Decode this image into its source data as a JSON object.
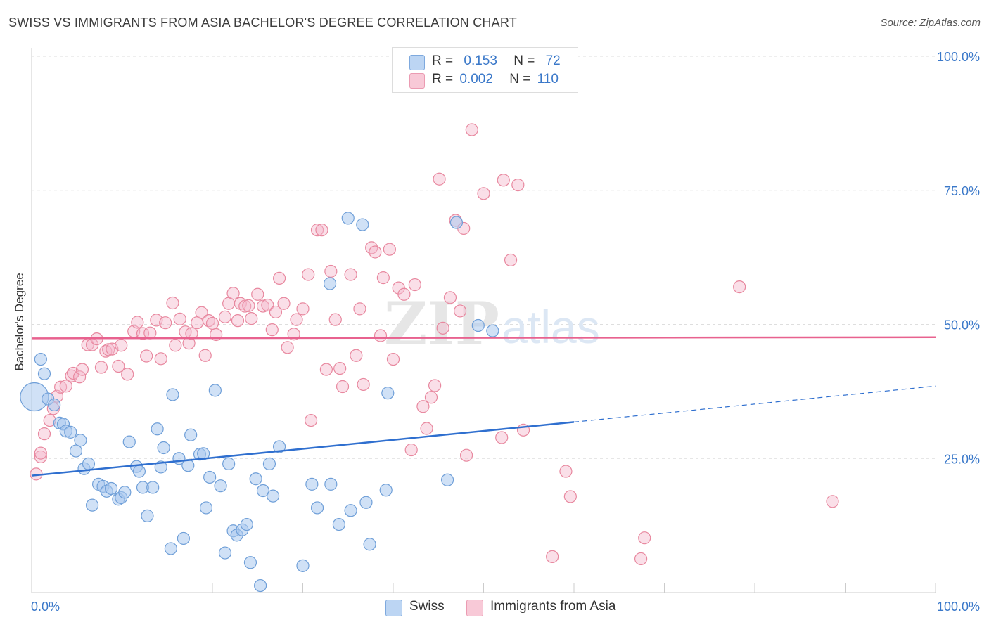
{
  "title": "SWISS VS IMMIGRANTS FROM ASIA BACHELOR'S DEGREE CORRELATION CHART",
  "source": "Source: ZipAtlas.com",
  "watermark": {
    "zip": "ZIP",
    "atlas": "atlas"
  },
  "legend": {
    "r_label": "R =",
    "n_label": "N =",
    "swiss": {
      "r": "0.153",
      "n": "72"
    },
    "asia": {
      "r": "0.002",
      "n": "110"
    }
  },
  "colors": {
    "swiss_fill": "#a9c8ef",
    "swiss_stroke": "#6f9fd8",
    "swiss_line": "#2f6fcf",
    "asia_fill": "#f4b9cc",
    "asia_stroke": "#e8889f",
    "asia_line": "#e8628f",
    "tick_text": "#3a78c9"
  },
  "chart_data": {
    "type": "scatter",
    "title": "SWISS VS IMMIGRANTS FROM ASIA BACHELOR'S DEGREE CORRELATION CHART",
    "xlabel": "",
    "ylabel": "Bachelor's Degree",
    "xlim": [
      0,
      100
    ],
    "ylim": [
      0,
      100
    ],
    "x_tick_labels": [
      "0.0%",
      "100.0%"
    ],
    "y_ticks": [
      {
        "value": 25,
        "label": "25.0%"
      },
      {
        "value": 50,
        "label": "50.0%"
      },
      {
        "value": 75,
        "label": "75.0%"
      },
      {
        "value": 100,
        "label": "100.0%"
      }
    ],
    "legend_position": "bottom",
    "series": [
      {
        "name": "Swiss",
        "r": 0.153,
        "n": 72,
        "trend": {
          "x0": 0,
          "y0": 21.8,
          "x1": 60,
          "y1": 31.8,
          "dash_to_x": 100,
          "dash_to_y": 38.5
        },
        "points": [
          [
            0.3,
            36.5
          ],
          [
            1.0,
            43.5
          ],
          [
            1.4,
            40.8
          ],
          [
            1.8,
            36.1
          ],
          [
            2.5,
            35.0
          ],
          [
            3.1,
            31.6
          ],
          [
            3.5,
            31.4
          ],
          [
            3.8,
            30.1
          ],
          [
            4.3,
            29.9
          ],
          [
            4.9,
            26.4
          ],
          [
            5.4,
            28.4
          ],
          [
            5.8,
            23.1
          ],
          [
            6.3,
            24.0
          ],
          [
            6.7,
            16.3
          ],
          [
            7.4,
            20.2
          ],
          [
            7.9,
            19.8
          ],
          [
            8.3,
            18.9
          ],
          [
            8.8,
            19.4
          ],
          [
            9.6,
            17.4
          ],
          [
            9.9,
            17.7
          ],
          [
            10.3,
            18.7
          ],
          [
            10.8,
            28.1
          ],
          [
            11.6,
            23.5
          ],
          [
            11.9,
            22.6
          ],
          [
            12.3,
            19.6
          ],
          [
            12.8,
            14.3
          ],
          [
            13.4,
            19.6
          ],
          [
            13.9,
            30.5
          ],
          [
            14.3,
            23.4
          ],
          [
            14.6,
            27.0
          ],
          [
            15.4,
            8.2
          ],
          [
            15.6,
            36.9
          ],
          [
            16.3,
            25.0
          ],
          [
            16.8,
            10.1
          ],
          [
            17.3,
            23.7
          ],
          [
            17.6,
            29.4
          ],
          [
            18.6,
            25.8
          ],
          [
            19.0,
            25.9
          ],
          [
            19.3,
            15.8
          ],
          [
            19.7,
            21.5
          ],
          [
            20.3,
            37.7
          ],
          [
            20.9,
            19.9
          ],
          [
            21.4,
            7.4
          ],
          [
            21.8,
            24.0
          ],
          [
            22.3,
            11.5
          ],
          [
            22.7,
            10.7
          ],
          [
            23.3,
            11.7
          ],
          [
            23.8,
            12.7
          ],
          [
            24.2,
            5.6
          ],
          [
            24.8,
            21.2
          ],
          [
            25.3,
            1.3
          ],
          [
            25.6,
            19.0
          ],
          [
            26.3,
            24.0
          ],
          [
            26.7,
            18.0
          ],
          [
            27.4,
            27.2
          ],
          [
            30.0,
            5.0
          ],
          [
            31.0,
            20.2
          ],
          [
            31.6,
            15.8
          ],
          [
            33.0,
            57.6
          ],
          [
            33.1,
            20.2
          ],
          [
            34.0,
            12.7
          ],
          [
            35.0,
            69.8
          ],
          [
            35.3,
            15.3
          ],
          [
            36.6,
            68.6
          ],
          [
            37.0,
            16.8
          ],
          [
            37.4,
            9.0
          ],
          [
            39.2,
            19.1
          ],
          [
            39.4,
            37.2
          ],
          [
            46.0,
            21.0
          ],
          [
            47.0,
            69.0
          ],
          [
            49.4,
            49.8
          ],
          [
            51.0,
            48.8
          ]
        ]
      },
      {
        "name": "Immigrants from Asia",
        "r": 0.002,
        "n": 110,
        "trend": {
          "x0": 0,
          "y0": 47.4,
          "x1": 100,
          "y1": 47.6
        },
        "points": [
          [
            0.5,
            22.1
          ],
          [
            1.0,
            25.3
          ],
          [
            1.4,
            29.6
          ],
          [
            2.0,
            32.1
          ],
          [
            2.4,
            34.3
          ],
          [
            2.8,
            36.6
          ],
          [
            3.2,
            38.3
          ],
          [
            3.8,
            38.5
          ],
          [
            4.4,
            40.4
          ],
          [
            4.6,
            40.9
          ],
          [
            5.3,
            40.2
          ],
          [
            5.6,
            41.6
          ],
          [
            6.2,
            46.2
          ],
          [
            6.7,
            46.2
          ],
          [
            7.2,
            47.3
          ],
          [
            7.7,
            42.0
          ],
          [
            8.2,
            45.0
          ],
          [
            8.5,
            45.3
          ],
          [
            8.9,
            45.4
          ],
          [
            9.6,
            42.2
          ],
          [
            9.9,
            46.1
          ],
          [
            10.6,
            40.7
          ],
          [
            11.3,
            48.7
          ],
          [
            11.7,
            50.4
          ],
          [
            12.3,
            48.3
          ],
          [
            12.7,
            44.1
          ],
          [
            13.1,
            48.4
          ],
          [
            13.8,
            50.8
          ],
          [
            14.3,
            43.6
          ],
          [
            14.8,
            50.3
          ],
          [
            15.6,
            54.0
          ],
          [
            15.9,
            46.1
          ],
          [
            16.4,
            51.0
          ],
          [
            17.0,
            48.6
          ],
          [
            17.4,
            46.5
          ],
          [
            17.7,
            48.3
          ],
          [
            18.3,
            50.3
          ],
          [
            18.8,
            52.2
          ],
          [
            19.2,
            44.2
          ],
          [
            19.6,
            50.7
          ],
          [
            20.0,
            50.2
          ],
          [
            20.4,
            48.1
          ],
          [
            21.4,
            51.4
          ],
          [
            21.8,
            53.9
          ],
          [
            22.3,
            55.8
          ],
          [
            22.8,
            50.7
          ],
          [
            23.1,
            53.9
          ],
          [
            23.6,
            53.4
          ],
          [
            24.0,
            53.5
          ],
          [
            24.3,
            51.1
          ],
          [
            25.0,
            55.6
          ],
          [
            25.6,
            53.4
          ],
          [
            26.1,
            53.6
          ],
          [
            26.6,
            49.0
          ],
          [
            27.0,
            52.3
          ],
          [
            27.4,
            58.6
          ],
          [
            27.9,
            53.9
          ],
          [
            28.3,
            45.7
          ],
          [
            29.0,
            48.2
          ],
          [
            29.3,
            50.9
          ],
          [
            30.0,
            52.9
          ],
          [
            30.6,
            59.3
          ],
          [
            30.9,
            32.1
          ],
          [
            31.6,
            67.6
          ],
          [
            32.1,
            67.6
          ],
          [
            32.6,
            41.6
          ],
          [
            33.1,
            59.9
          ],
          [
            33.6,
            50.9
          ],
          [
            34.1,
            41.8
          ],
          [
            34.4,
            38.4
          ],
          [
            35.3,
            59.3
          ],
          [
            35.9,
            44.2
          ],
          [
            36.3,
            52.9
          ],
          [
            36.7,
            38.8
          ],
          [
            37.6,
            64.3
          ],
          [
            38.0,
            63.5
          ],
          [
            38.6,
            47.9
          ],
          [
            38.9,
            58.7
          ],
          [
            39.6,
            64.0
          ],
          [
            40.0,
            43.5
          ],
          [
            40.6,
            56.8
          ],
          [
            41.2,
            55.6
          ],
          [
            42.0,
            26.6
          ],
          [
            42.4,
            57.4
          ],
          [
            43.3,
            34.7
          ],
          [
            43.7,
            30.6
          ],
          [
            44.2,
            36.4
          ],
          [
            44.6,
            38.6
          ],
          [
            45.1,
            77.1
          ],
          [
            45.5,
            49.3
          ],
          [
            46.3,
            55.0
          ],
          [
            46.9,
            69.4
          ],
          [
            47.4,
            52.5
          ],
          [
            47.8,
            67.9
          ],
          [
            48.1,
            25.6
          ],
          [
            48.7,
            86.3
          ],
          [
            50.0,
            74.4
          ],
          [
            52.0,
            28.9
          ],
          [
            52.2,
            76.9
          ],
          [
            53.0,
            62.0
          ],
          [
            53.8,
            76.0
          ],
          [
            54.4,
            30.3
          ],
          [
            57.6,
            6.7
          ],
          [
            59.1,
            22.6
          ],
          [
            59.6,
            17.9
          ],
          [
            67.4,
            6.3
          ],
          [
            67.8,
            10.2
          ],
          [
            78.3,
            57.0
          ],
          [
            88.6,
            17.0
          ],
          [
            1.0,
            26.0
          ]
        ]
      }
    ]
  }
}
